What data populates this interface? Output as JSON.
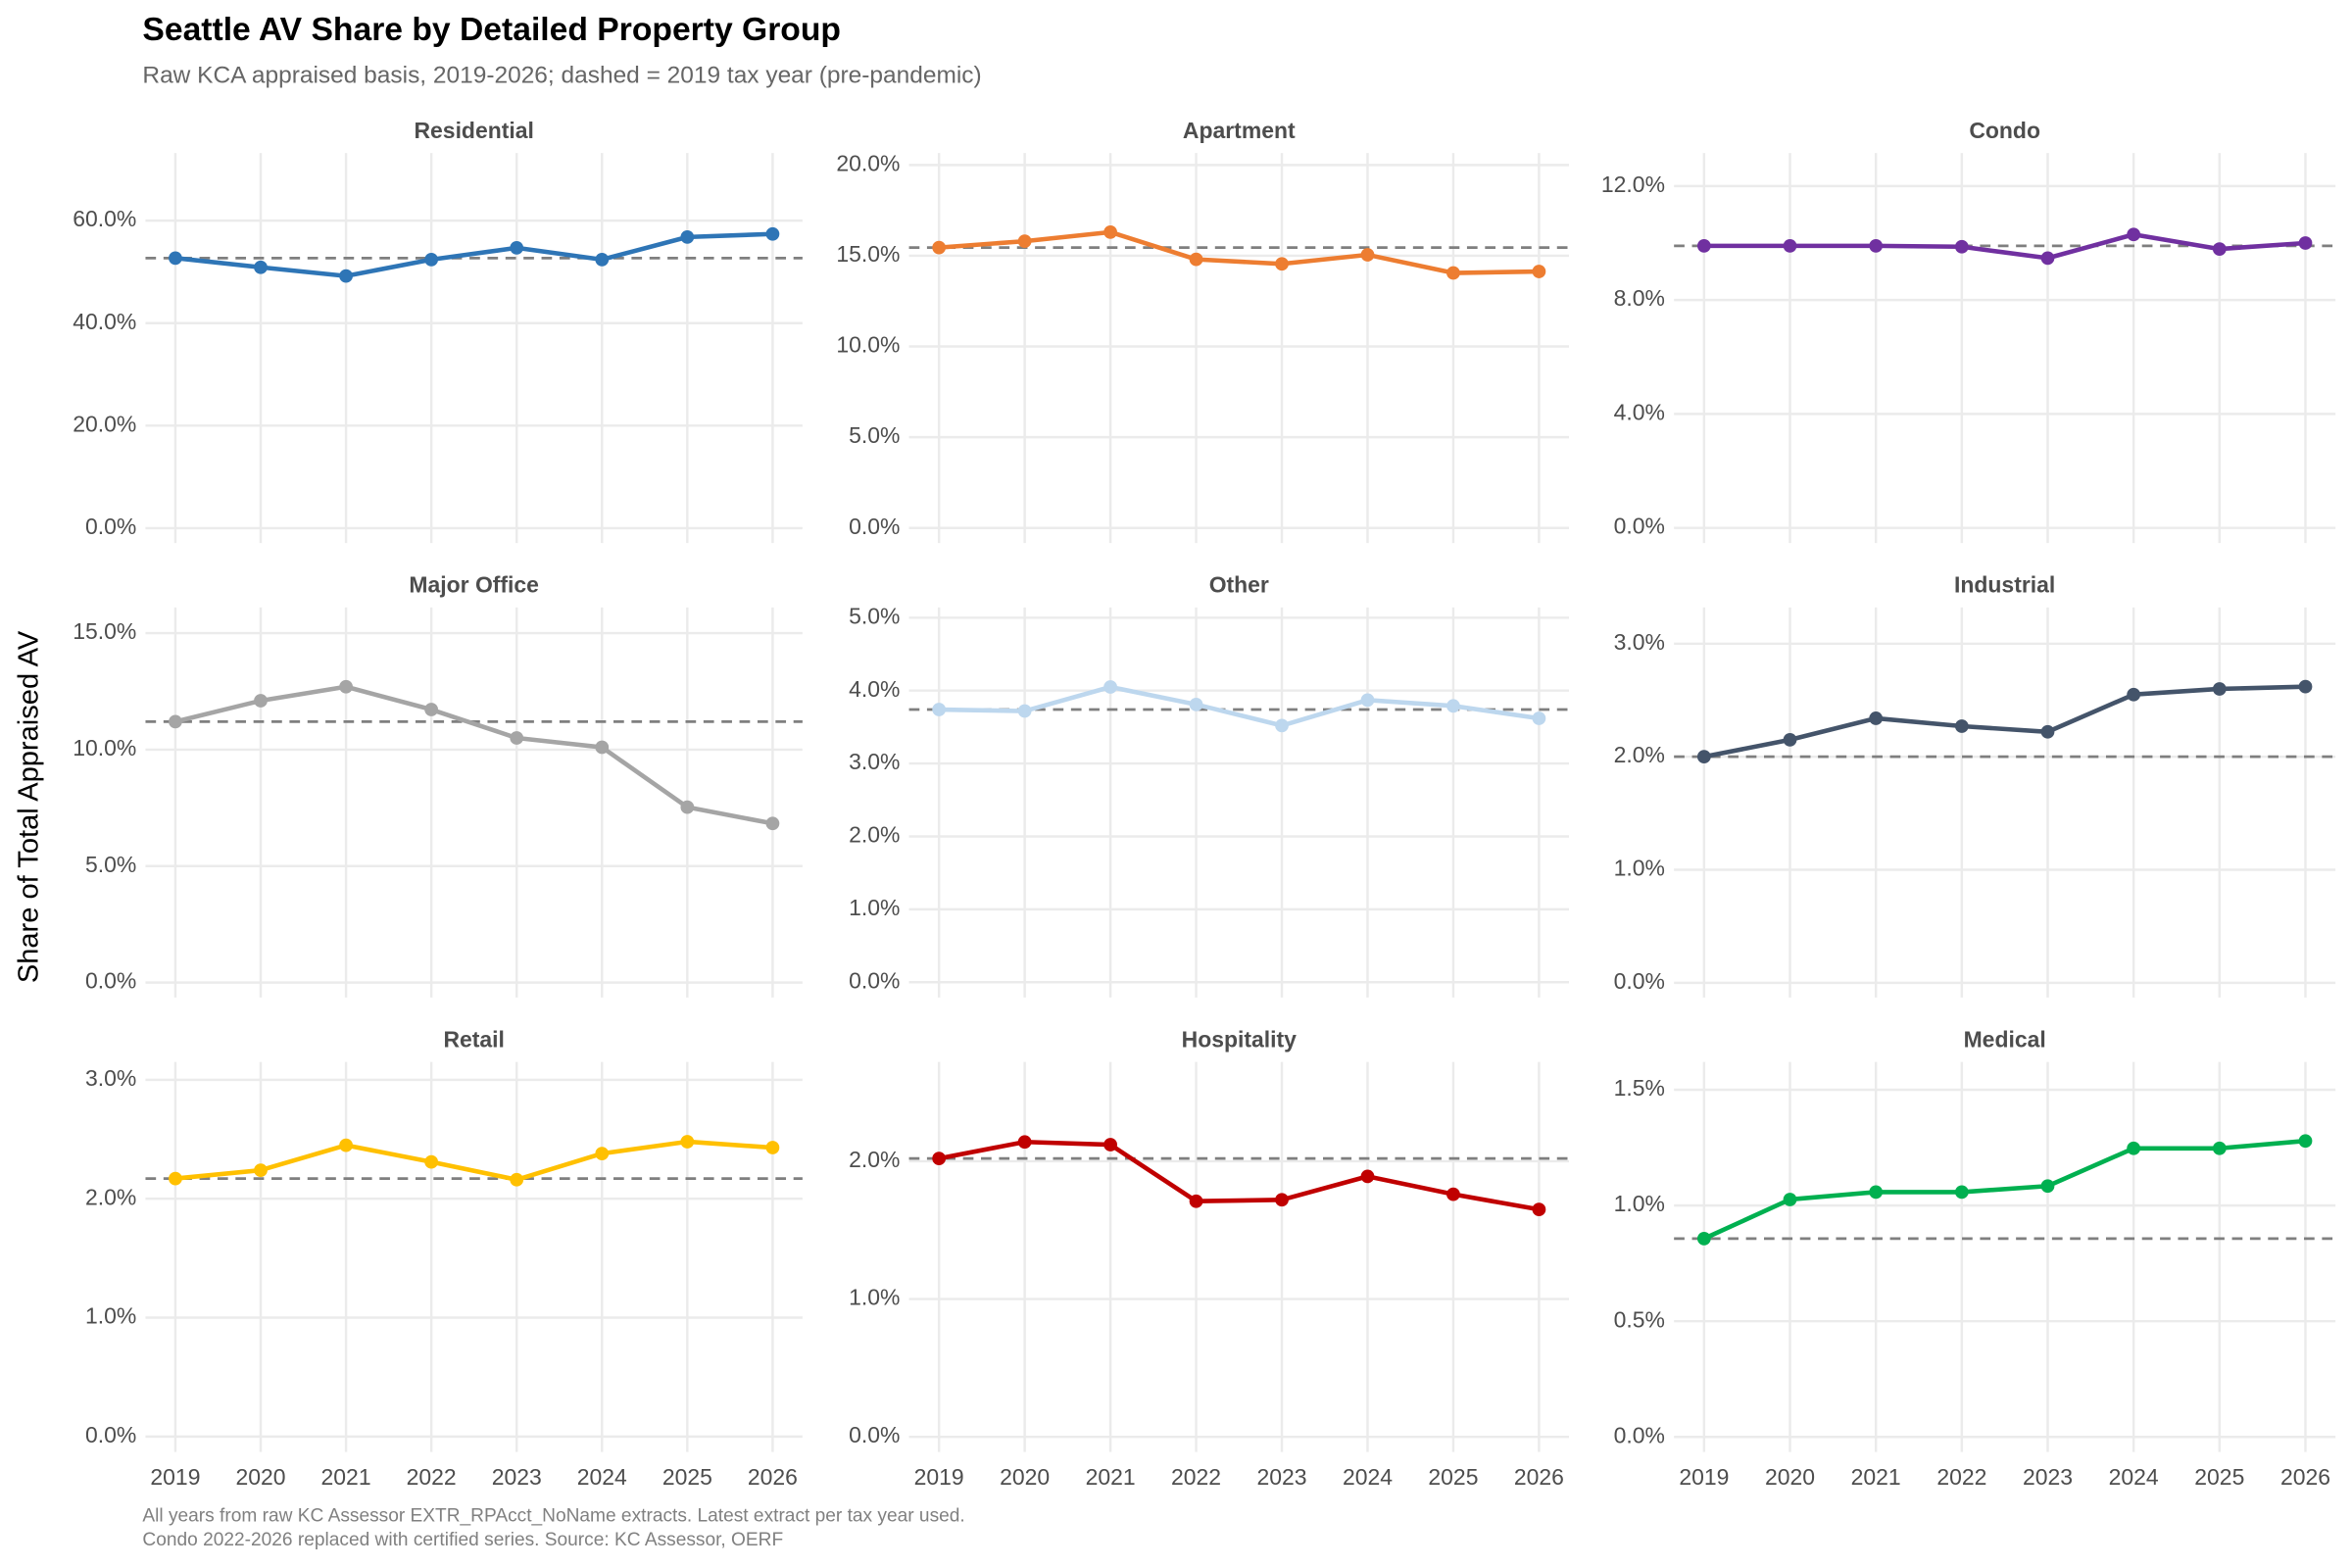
{
  "title": "Seattle AV Share by Detailed Property Group",
  "subtitle": "Raw KCA appraised basis, 2019-2026; dashed = 2019 tax year (pre-pandemic)",
  "y_label": "Share of Total Appraised AV",
  "caption": [
    "All years from raw KC Assessor EXTR_RPAcct_NoName extracts. Latest extract per tax year used.",
    "Condo 2022-2026 replaced with certified series. Source: KC Assessor, OERF"
  ],
  "chart_data": [
    {
      "type": "line",
      "title": "Residential",
      "x": [
        2019,
        2020,
        2021,
        2022,
        2023,
        2024,
        2025,
        2026
      ],
      "values": [
        52.7,
        50.9,
        49.2,
        52.4,
        54.7,
        52.4,
        56.8,
        57.4
      ],
      "color": "#2e75b6",
      "xlim": [
        2018.65,
        2026.35
      ],
      "xticks": [
        2019,
        2020,
        2021,
        2022,
        2023,
        2024,
        2025,
        2026
      ],
      "ylim": [
        -2.9,
        73.2
      ],
      "yticks": [
        {
          "value": 0,
          "label": "0.0%"
        },
        {
          "value": 20,
          "label": "20.0%"
        },
        {
          "value": 40,
          "label": "40.0%"
        },
        {
          "value": 60,
          "label": "60.0%"
        }
      ],
      "grid": true
    },
    {
      "type": "line",
      "title": "Apartment",
      "x": [
        2019,
        2020,
        2021,
        2022,
        2023,
        2024,
        2025,
        2026
      ],
      "values": [
        15.45,
        15.8,
        16.3,
        14.8,
        14.55,
        15.05,
        14.05,
        14.13
      ],
      "color": "#ed7d31",
      "xlim": [
        2018.65,
        2026.35
      ],
      "xticks": [
        2019,
        2020,
        2021,
        2022,
        2023,
        2024,
        2025,
        2026
      ],
      "ylim": [
        -0.83,
        20.66
      ],
      "yticks": [
        {
          "value": 0,
          "label": "0.0%"
        },
        {
          "value": 5,
          "label": "5.0%"
        },
        {
          "value": 10,
          "label": "10.0%"
        },
        {
          "value": 15,
          "label": "15.0%"
        },
        {
          "value": 20,
          "label": "20.0%"
        }
      ],
      "grid": true
    },
    {
      "type": "line",
      "title": "Condo",
      "x": [
        2019,
        2020,
        2021,
        2022,
        2023,
        2024,
        2025,
        2026
      ],
      "values": [
        9.9,
        9.9,
        9.9,
        9.87,
        9.47,
        10.3,
        9.79,
        10.0
      ],
      "color": "#7030a0",
      "xlim": [
        2018.65,
        2026.35
      ],
      "xticks": [
        2019,
        2020,
        2021,
        2022,
        2023,
        2024,
        2025,
        2026
      ],
      "ylim": [
        -0.53,
        13.16
      ],
      "yticks": [
        {
          "value": 0,
          "label": "0.0%"
        },
        {
          "value": 4,
          "label": "4.0%"
        },
        {
          "value": 8,
          "label": "8.0%"
        },
        {
          "value": 12,
          "label": "12.0%"
        }
      ],
      "grid": true
    },
    {
      "type": "line",
      "title": "Major Office",
      "x": [
        2019,
        2020,
        2021,
        2022,
        2023,
        2024,
        2025,
        2026
      ],
      "values": [
        11.2,
        12.1,
        12.7,
        11.72,
        10.5,
        10.1,
        7.53,
        6.83
      ],
      "color": "#a5a5a5",
      "xlim": [
        2018.65,
        2026.35
      ],
      "xticks": [
        2019,
        2020,
        2021,
        2022,
        2023,
        2024,
        2025,
        2026
      ],
      "ylim": [
        -0.64,
        16.1
      ],
      "yticks": [
        {
          "value": 0,
          "label": "0.0%"
        },
        {
          "value": 5,
          "label": "5.0%"
        },
        {
          "value": 10,
          "label": "10.0%"
        },
        {
          "value": 15,
          "label": "15.0%"
        }
      ],
      "grid": true
    },
    {
      "type": "line",
      "title": "Other",
      "x": [
        2019,
        2020,
        2021,
        2022,
        2023,
        2024,
        2025,
        2026
      ],
      "values": [
        3.74,
        3.72,
        4.05,
        3.81,
        3.52,
        3.87,
        3.79,
        3.62
      ],
      "color": "#bdd7ee",
      "xlim": [
        2018.65,
        2026.35
      ],
      "xticks": [
        2019,
        2020,
        2021,
        2022,
        2023,
        2024,
        2025,
        2026
      ],
      "ylim": [
        -0.21,
        5.14
      ],
      "yticks": [
        {
          "value": 0,
          "label": "0.0%"
        },
        {
          "value": 1,
          "label": "1.0%"
        },
        {
          "value": 2,
          "label": "2.0%"
        },
        {
          "value": 3,
          "label": "3.0%"
        },
        {
          "value": 4,
          "label": "4.0%"
        },
        {
          "value": 5,
          "label": "5.0%"
        }
      ],
      "grid": true
    },
    {
      "type": "line",
      "title": "Industrial",
      "x": [
        2019,
        2020,
        2021,
        2022,
        2023,
        2024,
        2025,
        2026
      ],
      "values": [
        2.0,
        2.15,
        2.34,
        2.27,
        2.22,
        2.55,
        2.6,
        2.62
      ],
      "color": "#44546a",
      "xlim": [
        2018.65,
        2026.35
      ],
      "xticks": [
        2019,
        2020,
        2021,
        2022,
        2023,
        2024,
        2025,
        2026
      ],
      "ylim": [
        -0.13,
        3.32
      ],
      "yticks": [
        {
          "value": 0,
          "label": "0.0%"
        },
        {
          "value": 1,
          "label": "1.0%"
        },
        {
          "value": 2,
          "label": "2.0%"
        },
        {
          "value": 3,
          "label": "3.0%"
        }
      ],
      "grid": true
    },
    {
      "type": "line",
      "title": "Retail",
      "x": [
        2019,
        2020,
        2021,
        2022,
        2023,
        2024,
        2025,
        2026
      ],
      "values": [
        2.17,
        2.24,
        2.45,
        2.31,
        2.16,
        2.38,
        2.48,
        2.43
      ],
      "color": "#ffc000",
      "xlim": [
        2018.65,
        2026.35
      ],
      "xticks": [
        2019,
        2020,
        2021,
        2022,
        2023,
        2024,
        2025,
        2026
      ],
      "ylim": [
        -0.13,
        3.15
      ],
      "yticks": [
        {
          "value": 0,
          "label": "0.0%"
        },
        {
          "value": 1,
          "label": "1.0%"
        },
        {
          "value": 2,
          "label": "2.0%"
        },
        {
          "value": 3,
          "label": "3.0%"
        }
      ],
      "grid": true
    },
    {
      "type": "line",
      "title": "Hospitality",
      "x": [
        2019,
        2020,
        2021,
        2022,
        2023,
        2024,
        2025,
        2026
      ],
      "values": [
        2.02,
        2.14,
        2.12,
        1.71,
        1.72,
        1.89,
        1.76,
        1.65
      ],
      "color": "#c00000",
      "xlim": [
        2018.65,
        2026.35
      ],
      "xticks": [
        2019,
        2020,
        2021,
        2022,
        2023,
        2024,
        2025,
        2026
      ],
      "ylim": [
        -0.11,
        2.72
      ],
      "yticks": [
        {
          "value": 0,
          "label": "0.0%"
        },
        {
          "value": 1,
          "label": "1.0%"
        },
        {
          "value": 2,
          "label": "2.0%"
        }
      ],
      "grid": true
    },
    {
      "type": "line",
      "title": "Medical",
      "x": [
        2019,
        2020,
        2021,
        2022,
        2023,
        2024,
        2025,
        2026
      ],
      "values": [
        0.857,
        1.026,
        1.058,
        1.058,
        1.084,
        1.247,
        1.247,
        1.279
      ],
      "color": "#00b050",
      "xlim": [
        2018.65,
        2026.35
      ],
      "xticks": [
        2019,
        2020,
        2021,
        2022,
        2023,
        2024,
        2025,
        2026
      ],
      "ylim": [
        -0.065,
        1.62
      ],
      "yticks": [
        {
          "value": 0,
          "label": "0.0%"
        },
        {
          "value": 0.5,
          "label": "0.5%"
        },
        {
          "value": 1,
          "label": "1.0%"
        },
        {
          "value": 1.5,
          "label": "1.5%"
        }
      ],
      "grid": true
    }
  ]
}
